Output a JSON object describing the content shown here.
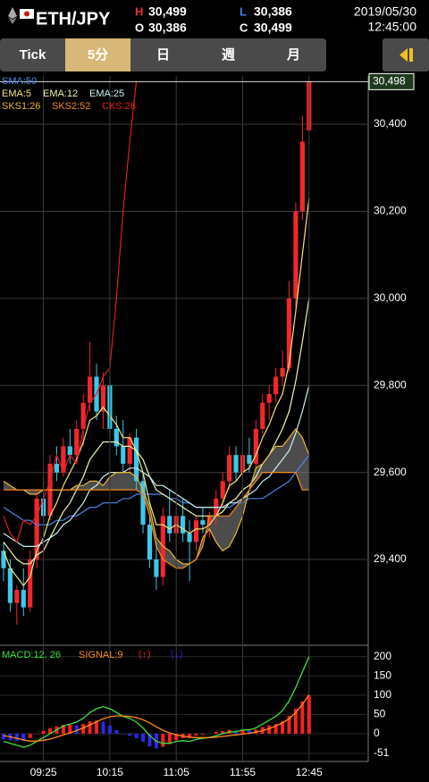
{
  "header": {
    "symbol": "ETH/JPY",
    "high_label": "H",
    "high": "30,499",
    "open_label": "O",
    "open": "30,386",
    "low_label": "L",
    "low": "30,386",
    "close_label": "C",
    "close": "30,499",
    "date": "2019/05/30",
    "time": "12:45:00"
  },
  "tabs": {
    "items": [
      "Tick",
      "5分",
      "日",
      "週",
      "月"
    ],
    "active": 1
  },
  "chart_data": [
    {
      "type": "candlestick",
      "categories": [
        null,
        null,
        null,
        null,
        null,
        null,
        "09:25",
        null,
        null,
        null,
        null,
        null,
        null,
        null,
        null,
        null,
        "10:15",
        null,
        null,
        null,
        null,
        null,
        null,
        null,
        null,
        null,
        "11:05",
        null,
        null,
        null,
        null,
        null,
        null,
        null,
        null,
        null,
        "11:55",
        null,
        null,
        null,
        null,
        null,
        null,
        null,
        null,
        null,
        "12:45"
      ],
      "open": [
        29420,
        29380,
        29300,
        29330,
        29290,
        29400,
        29540,
        29500,
        29620,
        29600,
        29660,
        29640,
        29700,
        29760,
        29820,
        29740,
        29800,
        29700,
        29660,
        29620,
        29680,
        29580,
        29480,
        29400,
        29360,
        29500,
        29460,
        29500,
        29460,
        29440,
        29490,
        29480,
        29500,
        29540,
        29580,
        29640,
        29600,
        29640,
        29620,
        29700,
        29760,
        29780,
        29820,
        29840,
        30000,
        30200,
        30386
      ],
      "high": [
        29440,
        29400,
        29340,
        29380,
        29420,
        29560,
        29600,
        29640,
        29660,
        29680,
        29700,
        29720,
        29780,
        29900,
        29850,
        29830,
        29820,
        29730,
        29720,
        29690,
        29700,
        29600,
        29500,
        29440,
        29520,
        29560,
        29520,
        29540,
        29490,
        29500,
        29520,
        29510,
        29560,
        29600,
        29660,
        29660,
        29660,
        29680,
        29720,
        29780,
        29800,
        29840,
        29880,
        30040,
        30220,
        30420,
        30499
      ],
      "low": [
        29350,
        29280,
        29250,
        29270,
        29280,
        29380,
        29480,
        29490,
        29580,
        29590,
        29620,
        29630,
        29660,
        29740,
        29720,
        29700,
        29680,
        29640,
        29600,
        29600,
        29560,
        29460,
        29380,
        29330,
        29340,
        29440,
        29420,
        29440,
        29350,
        29420,
        29460,
        29450,
        29480,
        29520,
        29560,
        29580,
        29590,
        29600,
        29610,
        29690,
        29720,
        29760,
        29800,
        29830,
        29980,
        30180,
        30386
      ],
      "close": [
        29380,
        29300,
        29330,
        29290,
        29400,
        29540,
        29500,
        29620,
        29600,
        29660,
        29640,
        29700,
        29760,
        29820,
        29740,
        29800,
        29700,
        29660,
        29620,
        29680,
        29580,
        29480,
        29400,
        29360,
        29500,
        29460,
        29500,
        29460,
        29440,
        29490,
        29480,
        29500,
        29540,
        29580,
        29640,
        29600,
        29640,
        29620,
        29700,
        29760,
        29780,
        29820,
        29840,
        30000,
        30200,
        30360,
        30499
      ],
      "up_color": "#f0282c",
      "down_color": "#3cc8ea",
      "cloud_color": "#8a8a8a",
      "ylim": [
        29207,
        30511
      ],
      "yticks": [
        {
          "value": 29400,
          "label": "29,400"
        },
        {
          "value": 29600,
          "label": "29,600"
        },
        {
          "value": 29800,
          "label": "29,800"
        },
        {
          "value": 30000,
          "label": "30,000"
        },
        {
          "value": 30200,
          "label": "30,200"
        },
        {
          "value": 30400,
          "label": "30,400"
        }
      ],
      "grid": true,
      "current_price": {
        "value": 30498,
        "label": "30,498"
      },
      "series": [
        {
          "name": "SMA:50",
          "color": "#4f86ea",
          "values": [
            29520,
            29510,
            29500,
            29490,
            29490,
            29480,
            29480,
            29480,
            29490,
            29490,
            29500,
            29500,
            29510,
            29520,
            29520,
            29530,
            29530,
            29530,
            29540,
            29540,
            29550,
            29550,
            29550,
            29550,
            29550,
            29540,
            29540,
            29530,
            29530,
            29520,
            29520,
            29520,
            29520,
            29520,
            29520,
            29530,
            29530,
            29540,
            29540,
            29540,
            29550,
            29560,
            29570,
            29580,
            29600,
            29620,
            29640
          ]
        },
        {
          "name": "EMA:5",
          "color": "#f4e27a",
          "values": [
            29420,
            29380,
            29360,
            29340,
            29360,
            29420,
            29450,
            29500,
            29530,
            29570,
            29600,
            29630,
            29670,
            29720,
            29730,
            29750,
            29730,
            29710,
            29680,
            29680,
            29650,
            29600,
            29530,
            29480,
            29480,
            29470,
            29480,
            29470,
            29460,
            29470,
            29470,
            29480,
            29500,
            29530,
            29570,
            29580,
            29600,
            29610,
            29640,
            29680,
            29710,
            29750,
            29780,
            29850,
            29970,
            30100,
            30230
          ]
        },
        {
          "name": "EMA:12",
          "color": "#eef5b0",
          "values": [
            29440,
            29420,
            29400,
            29390,
            29390,
            29410,
            29420,
            29450,
            29480,
            29510,
            29530,
            29560,
            29590,
            29630,
            29650,
            29670,
            29670,
            29670,
            29660,
            29660,
            29650,
            29630,
            29590,
            29560,
            29550,
            29540,
            29530,
            29520,
            29510,
            29500,
            29500,
            29500,
            29500,
            29510,
            29530,
            29540,
            29560,
            29570,
            29590,
            29620,
            29640,
            29670,
            29700,
            29740,
            29810,
            29900,
            30000
          ]
        },
        {
          "name": "EMA:25",
          "color": "#c8f0f0",
          "values": [
            29460,
            29450,
            29440,
            29430,
            29430,
            29430,
            29440,
            29450,
            29460,
            29480,
            29490,
            29510,
            29530,
            29560,
            29570,
            29590,
            29600,
            29600,
            29600,
            29610,
            29610,
            29600,
            29590,
            29570,
            29570,
            29560,
            29550,
            29540,
            29530,
            29520,
            29520,
            29520,
            29520,
            29520,
            29530,
            29530,
            29540,
            29550,
            29560,
            29580,
            29590,
            29610,
            29630,
            29650,
            29690,
            29740,
            29800
          ]
        },
        {
          "name": "SKS1:26",
          "color": "#e8b830",
          "values": [
            29580,
            29570,
            29560,
            29560,
            29550,
            29550,
            29560,
            29560,
            29560,
            29560,
            29560,
            29570,
            29570,
            29580,
            29580,
            29570,
            29590,
            29600,
            29600,
            29600,
            29590,
            29560,
            29520,
            29450,
            29430,
            29420,
            29400,
            29390,
            29390,
            29400,
            29450,
            29470,
            29440,
            29420,
            29430,
            29460,
            29500,
            29560,
            29610,
            29620,
            29640,
            29660,
            29660,
            29680,
            29700,
            29680,
            29640
          ]
        },
        {
          "name": "SKS2:52",
          "color": "#f28a1e",
          "values": [
            29560,
            29560,
            29560,
            29560,
            29560,
            29560,
            29560,
            29560,
            29560,
            29560,
            29560,
            29560,
            29560,
            29560,
            29560,
            29560,
            29560,
            29560,
            29560,
            29560,
            29560,
            29550,
            29500,
            29430,
            29400,
            29390,
            29380,
            29380,
            29390,
            29400,
            29430,
            29500,
            29500,
            29500,
            29500,
            29520,
            29540,
            29560,
            29580,
            29600,
            29600,
            29600,
            29600,
            29600,
            29600,
            29560,
            29560
          ]
        },
        {
          "name": "CKS:26",
          "color": "#e0201e",
          "values": [
            29500,
            29460,
            29440,
            29490,
            29480,
            29500,
            29540,
            29580,
            29640,
            29600,
            29640,
            29620,
            29700,
            29760,
            29780,
            29820,
            29840,
            30000,
            30200,
            30360,
            30499,
            null,
            null,
            null,
            null,
            null,
            null,
            null,
            null,
            null,
            null,
            null,
            null,
            null,
            null,
            null,
            null,
            null,
            null,
            null,
            null,
            null,
            null,
            null,
            null,
            null,
            null
          ]
        }
      ]
    },
    {
      "type": "macd",
      "ylim": [
        -72,
        218
      ],
      "yticks": [
        -51,
        0,
        50,
        100,
        150,
        200
      ],
      "series": [
        {
          "name": "MACD:12, 26",
          "color": "#3ee03e",
          "values": [
            -20,
            -25,
            -30,
            -35,
            -30,
            -20,
            -10,
            0,
            10,
            20,
            25,
            30,
            40,
            55,
            65,
            70,
            65,
            55,
            45,
            40,
            30,
            15,
            -5,
            -20,
            -25,
            -25,
            -20,
            -18,
            -20,
            -15,
            -12,
            -10,
            -5,
            0,
            5,
            5,
            10,
            10,
            15,
            25,
            35,
            45,
            60,
            85,
            120,
            160,
            200
          ]
        },
        {
          "name": "SIGNAL:9",
          "color": "#ff8c1a",
          "values": [
            -5,
            -8,
            -12,
            -16,
            -19,
            -19,
            -17,
            -14,
            -9,
            -3,
            2,
            8,
            15,
            23,
            31,
            39,
            44,
            46,
            46,
            45,
            42,
            36,
            28,
            18,
            9,
            2,
            -3,
            -6,
            -9,
            -10,
            -10,
            -10,
            -9,
            -7,
            -5,
            -3,
            -1,
            1,
            4,
            8,
            13,
            20,
            28,
            39,
            55,
            76,
            101
          ]
        }
      ],
      "histogram": {
        "up_label": "（↑）",
        "down_label": "（↓）",
        "up_color": "#ff2020",
        "down_color": "#2a2ae8",
        "values": [
          -15,
          -17,
          -18,
          -19,
          -11,
          -1,
          7,
          14,
          19,
          23,
          23,
          22,
          25,
          32,
          34,
          31,
          21,
          9,
          -1,
          -5,
          -12,
          -21,
          -33,
          -38,
          -34,
          -27,
          -17,
          -12,
          -11,
          -5,
          -2,
          0,
          4,
          7,
          10,
          8,
          11,
          9,
          11,
          17,
          22,
          25,
          32,
          46,
          65,
          84,
          99
        ]
      }
    }
  ]
}
